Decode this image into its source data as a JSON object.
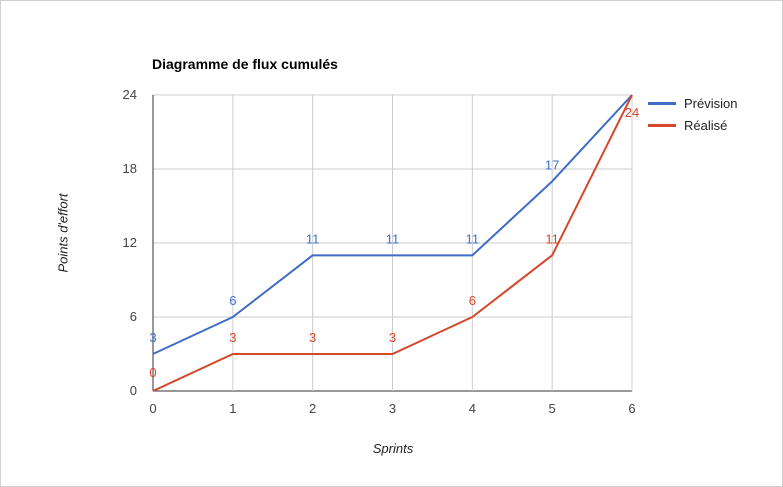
{
  "chart_data": {
    "type": "line",
    "title": "Diagramme de flux cumulés",
    "xlabel": "Sprints",
    "ylabel": "Points d'effort",
    "x": [
      0,
      1,
      2,
      3,
      4,
      5,
      6
    ],
    "xlim": [
      0,
      6
    ],
    "ylim": [
      0,
      24
    ],
    "yticks": [
      0,
      6,
      12,
      18,
      24
    ],
    "grid": true,
    "legend_position": "right",
    "series": [
      {
        "name": "Prévision",
        "color": "#3f6cc9",
        "values": [
          3,
          6,
          11,
          11,
          11,
          17,
          24
        ],
        "labels": [
          "3",
          "6",
          "11",
          "11",
          "11",
          "17",
          ""
        ]
      },
      {
        "name": "Réalisé",
        "color": "#d6462a",
        "values": [
          0,
          3,
          3,
          3,
          6,
          11,
          24
        ],
        "labels": [
          "0",
          "3",
          "3",
          "3",
          "6",
          "11",
          "24"
        ]
      }
    ]
  }
}
